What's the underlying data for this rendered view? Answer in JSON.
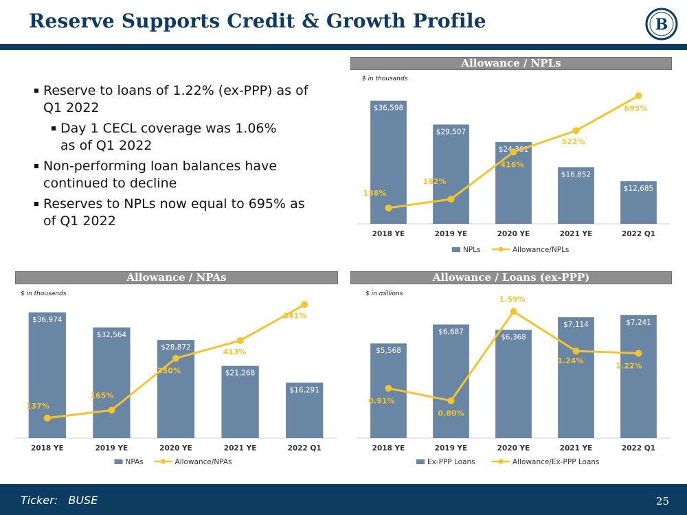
{
  "slide": {
    "title": "Reserve Supports Credit & Growth Profile",
    "logo_text": "B",
    "page_number": "25",
    "ticker_label": "Ticker:",
    "ticker": "BUSE"
  },
  "bullets": [
    {
      "text": "Reserve to loans of 1.22% (ex-PPP) as of Q1 2022",
      "level": 1
    },
    {
      "text": "Day 1 CECL coverage was 1.06% as of Q1 2022",
      "level": 2
    },
    {
      "text": "Non-performing loan balances have continued to decline",
      "level": 1
    },
    {
      "text": "Reserves to NPLs now equal to 695% as of Q1 2022",
      "level": 1
    }
  ],
  "chart_data": [
    {
      "type": "bar",
      "title": "Allowance / NPLs",
      "units": "$ in thousands",
      "categories": [
        "2018 YE",
        "2019 YE",
        "2020 YE",
        "2021 YE",
        "2022 Q1"
      ],
      "series": [
        {
          "name": "NPLs",
          "kind": "bar",
          "values": [
            36598,
            29507,
            24301,
            16852,
            12685
          ],
          "labels": [
            "$36,598",
            "$29,507",
            "$24,301",
            "$16,852",
            "$12,685"
          ]
        },
        {
          "name": "Allowance/NPLs",
          "kind": "line",
          "values": [
            138,
            182,
            416,
            522,
            695
          ],
          "labels": [
            "138%",
            "182%",
            "416%",
            "522%",
            "695%"
          ]
        }
      ],
      "bar_ylim": [
        0,
        40000
      ],
      "line_ylim": [
        100,
        700
      ],
      "colors": {
        "bar": "#6a86a5",
        "line": "#f4c430"
      }
    },
    {
      "type": "bar",
      "title": "Allowance / NPAs",
      "units": "$ in thousands",
      "categories": [
        "2018 YE",
        "2019 YE",
        "2020 YE",
        "2021 YE",
        "2022 Q1"
      ],
      "series": [
        {
          "name": "NPAs",
          "kind": "bar",
          "values": [
            36974,
            32564,
            28872,
            21268,
            16291
          ],
          "labels": [
            "$36,974",
            "$32,564",
            "$28,872",
            "$21,268",
            "$16,291"
          ]
        },
        {
          "name": "Allowance/NPAs",
          "kind": "line",
          "values": [
            137,
            165,
            350,
            413,
            541
          ],
          "labels": [
            "137%",
            "165%",
            "350%",
            "413%",
            "541%"
          ]
        }
      ],
      "bar_ylim": [
        0,
        40000
      ],
      "line_ylim": [
        90,
        550
      ],
      "colors": {
        "bar": "#6a86a5",
        "line": "#f4c430"
      }
    },
    {
      "type": "bar",
      "title": "Allowance / Loans (ex-PPP)",
      "units": "$ in millions",
      "categories": [
        "2018 YE",
        "2019 YE",
        "2020 YE",
        "2021 YE",
        "2022 Q1"
      ],
      "series": [
        {
          "name": "Ex-PPP Loans",
          "kind": "bar",
          "values": [
            5568,
            6687,
            6368,
            7114,
            7241
          ],
          "labels": [
            "$5,568",
            "$6,687",
            "$6,368",
            "$7,114",
            "$7,241"
          ]
        },
        {
          "name": "Allowance/Ex-PPP Loans",
          "kind": "line",
          "values": [
            0.91,
            0.8,
            1.59,
            1.24,
            1.22
          ],
          "labels": [
            "0.91%",
            "0.80%",
            "1.59%",
            "1.24%",
            "1.22%"
          ]
        }
      ],
      "bar_ylim": [
        0,
        8000
      ],
      "line_ylim": [
        0.7,
        1.6
      ],
      "colors": {
        "bar": "#6a86a5",
        "line": "#f4c430"
      }
    }
  ]
}
